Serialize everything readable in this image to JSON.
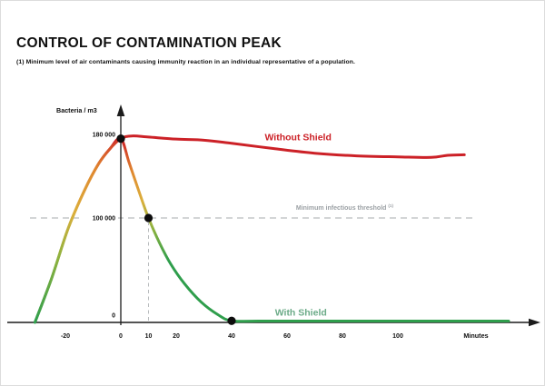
{
  "page": {
    "title": "CONTROL OF CONTAMINATION PEAK",
    "subtitle": "(1) Minimum level of air contaminants causing immunity reaction in an individual representative of a population."
  },
  "chart_data": {
    "type": "line",
    "title": "CONTROL OF CONTAMINATION PEAK",
    "xlabel": "Minutes",
    "ylabel": "Bacteria / m3",
    "xlim": [
      -41,
      152
    ],
    "ylim": [
      0,
      207000
    ],
    "grid": false,
    "x_ticks": [
      -20,
      0,
      10,
      20,
      40,
      60,
      80,
      100
    ],
    "y_ticks": [
      {
        "value": 0,
        "label": "0"
      },
      {
        "value": 100000,
        "label": "100 000"
      },
      {
        "value": 180000,
        "label": "180 000"
      }
    ],
    "palette": {
      "green": "#2f9e4c",
      "yellow_green": "#8db23f",
      "yellow": "#dbaf3c",
      "orange": "#e0882f",
      "red": "#cc2127",
      "label_green": "#6cab88",
      "gray_text": "#9ba0a4",
      "dash_gray": "#b9bcbe",
      "axis_black": "#1c1c1c",
      "dot_black": "#0d0d0d"
    },
    "threshold": {
      "value": 100000,
      "label": "Minimum infectious threshold",
      "superscript": "(1)"
    },
    "guide_line": {
      "x": 10,
      "to_value": 100000
    },
    "series": [
      {
        "name": "Without Shield",
        "gradient": "rise",
        "label_color": "#cc2127",
        "label_pos": [
          64,
          177500
        ],
        "points": [
          [
            -31,
            0
          ],
          [
            -25,
            42000
          ],
          [
            -19,
            90000
          ],
          [
            -13,
            127000
          ],
          [
            -8,
            152000
          ],
          [
            -4,
            166000
          ],
          [
            0,
            176000
          ],
          [
            4,
            178500
          ],
          [
            10,
            177500
          ],
          [
            20,
            175500
          ],
          [
            30,
            174500
          ],
          [
            40,
            171500
          ],
          [
            55,
            166500
          ],
          [
            70,
            162000
          ],
          [
            85,
            159500
          ],
          [
            100,
            158500
          ],
          [
            112,
            158000
          ],
          [
            118,
            160000
          ],
          [
            124,
            160500
          ]
        ]
      },
      {
        "name": "With Shield",
        "gradient": "fall",
        "label_color": "#6cab88",
        "label_pos": [
          65,
          9500
        ],
        "points": [
          [
            -31,
            0
          ],
          [
            -25,
            42000
          ],
          [
            -19,
            90000
          ],
          [
            -13,
            127000
          ],
          [
            -8,
            152000
          ],
          [
            -4,
            166000
          ],
          [
            0,
            176000
          ],
          [
            3,
            153000
          ],
          [
            7,
            122000
          ],
          [
            10,
            100000
          ],
          [
            14,
            76000
          ],
          [
            18,
            56000
          ],
          [
            23,
            37000
          ],
          [
            29,
            19500
          ],
          [
            35,
            7500
          ],
          [
            40,
            1500
          ],
          [
            50,
            1300
          ],
          [
            80,
            1300
          ],
          [
            110,
            1300
          ],
          [
            140,
            1300
          ]
        ]
      }
    ],
    "markers": [
      [
        0,
        176000
      ],
      [
        10,
        100000
      ],
      [
        40,
        1500
      ]
    ]
  }
}
